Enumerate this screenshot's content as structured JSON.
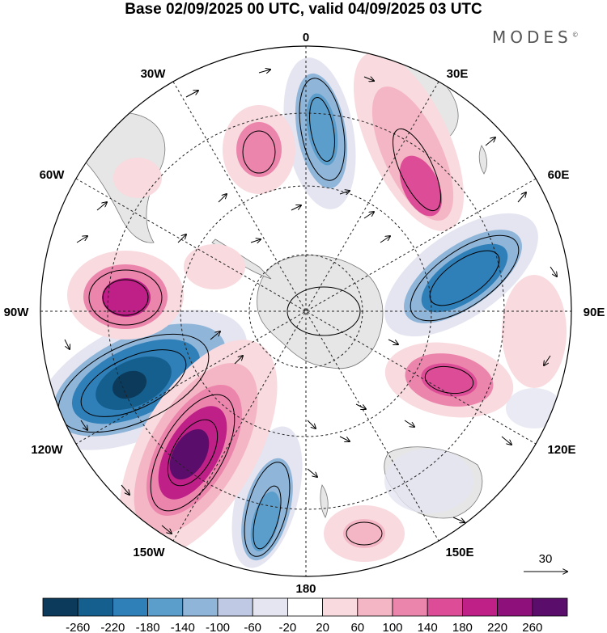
{
  "title": "Base 02/09/2025 00 UTC, valid 04/09/2025 03 UTC",
  "brand": "MODES",
  "brand_mark": "©",
  "longitude_labels": {
    "deg0": "0",
    "deg30e": "30E",
    "deg60e": "60E",
    "deg90e": "90E",
    "deg120e": "120E",
    "deg150e": "150E",
    "deg180": "180",
    "deg150w": "150W",
    "deg120w": "120W",
    "deg90w": "90W",
    "deg60w": "60W",
    "deg30w": "30W"
  },
  "reference_vector_label": "30",
  "colorbar": {
    "ticks": [
      "-260",
      "-220",
      "-180",
      "-140",
      "-100",
      "-60",
      "-20",
      "20",
      "60",
      "100",
      "140",
      "180",
      "220",
      "260"
    ],
    "colors": [
      "#0b3a5a",
      "#155f8e",
      "#2f7fb8",
      "#5b9dcb",
      "#8fb5d9",
      "#bfc9e3",
      "#e4e5f1",
      "#ffffff",
      "#f8dadf",
      "#f4b6c5",
      "#ec85ac",
      "#dd4d97",
      "#be2087",
      "#8e107a",
      "#5a0d6a"
    ]
  }
}
